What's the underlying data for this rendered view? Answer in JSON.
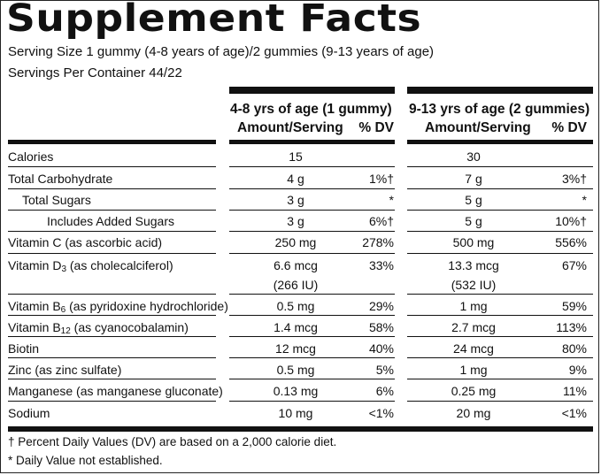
{
  "title": "Supplement Facts",
  "serving_size": "Serving Size 1 gummy (4-8 years of age)/2 gummies (9-13 years of age)",
  "servings_per_container": "Servings Per Container 44/22",
  "columns": {
    "group_a": {
      "title": "4-8 yrs of age (1 gummy)",
      "amount_header": "Amount/Serving",
      "dv_header": "% DV"
    },
    "group_b": {
      "title": "9-13 yrs of age (2 gummies)",
      "amount_header": "Amount/Serving",
      "dv_header": "% DV"
    }
  },
  "rows": [
    {
      "name": "Calories",
      "sub": "",
      "name_after": "",
      "a_amount": "15",
      "a_dv": "",
      "b_amount": "30",
      "b_dv": ""
    },
    {
      "name": "Total Carbohydrate",
      "sub": "",
      "name_after": "",
      "a_amount": "4 g",
      "a_dv": "1%†",
      "b_amount": "7 g",
      "b_dv": "3%†"
    },
    {
      "name": "Total Sugars",
      "sub": "",
      "name_after": "",
      "a_amount": "3 g",
      "a_dv": "*",
      "b_amount": "5 g",
      "b_dv": "*"
    },
    {
      "name": "Includes Added Sugars",
      "sub": "",
      "name_after": "",
      "a_amount": "3 g",
      "a_dv": "6%†",
      "b_amount": "5 g",
      "b_dv": "10%†"
    },
    {
      "name": "Vitamin C (as ascorbic acid)",
      "sub": "",
      "name_after": "",
      "a_amount": "250 mg",
      "a_dv": "278%",
      "b_amount": "500 mg",
      "b_dv": "556%"
    },
    {
      "name": "Vitamin D",
      "sub": "3",
      "name_after": " (as cholecalciferol)",
      "a_amount": "6.6 mcg",
      "a_amount2": "(266 IU)",
      "a_dv": "33%",
      "b_amount": "13.3 mcg",
      "b_amount2": "(532 IU)",
      "b_dv": "67%"
    },
    {
      "name": "Vitamin B",
      "sub": "6",
      "name_after": " (as pyridoxine hydrochloride)",
      "a_amount": "0.5 mg",
      "a_dv": "29%",
      "b_amount": "1 mg",
      "b_dv": "59%"
    },
    {
      "name": "Vitamin B",
      "sub": "12",
      "name_after": " (as cyanocobalamin)",
      "a_amount": "1.4 mcg",
      "a_dv": "58%",
      "b_amount": "2.7 mcg",
      "b_dv": "113%"
    },
    {
      "name": "Biotin",
      "sub": "",
      "name_after": "",
      "a_amount": "12 mcg",
      "a_dv": "40%",
      "b_amount": "24 mcg",
      "b_dv": "80%"
    },
    {
      "name": "Zinc (as zinc sulfate)",
      "sub": "",
      "name_after": "",
      "a_amount": "0.5 mg",
      "a_dv": "5%",
      "b_amount": "1 mg",
      "b_dv": "9%"
    },
    {
      "name": "Manganese (as manganese gluconate)",
      "sub": "",
      "name_after": "",
      "a_amount": "0.13 mg",
      "a_dv": "6%",
      "b_amount": "0.25 mg",
      "b_dv": "11%"
    },
    {
      "name": "Sodium",
      "sub": "",
      "name_after": "",
      "a_amount": "10 mg",
      "a_dv": "<1%",
      "b_amount": "20 mg",
      "b_dv": "<1%"
    }
  ],
  "footnotes": [
    "† Percent Daily Values (DV) are based on a 2,000 calorie diet.",
    "* Daily Value not established."
  ]
}
